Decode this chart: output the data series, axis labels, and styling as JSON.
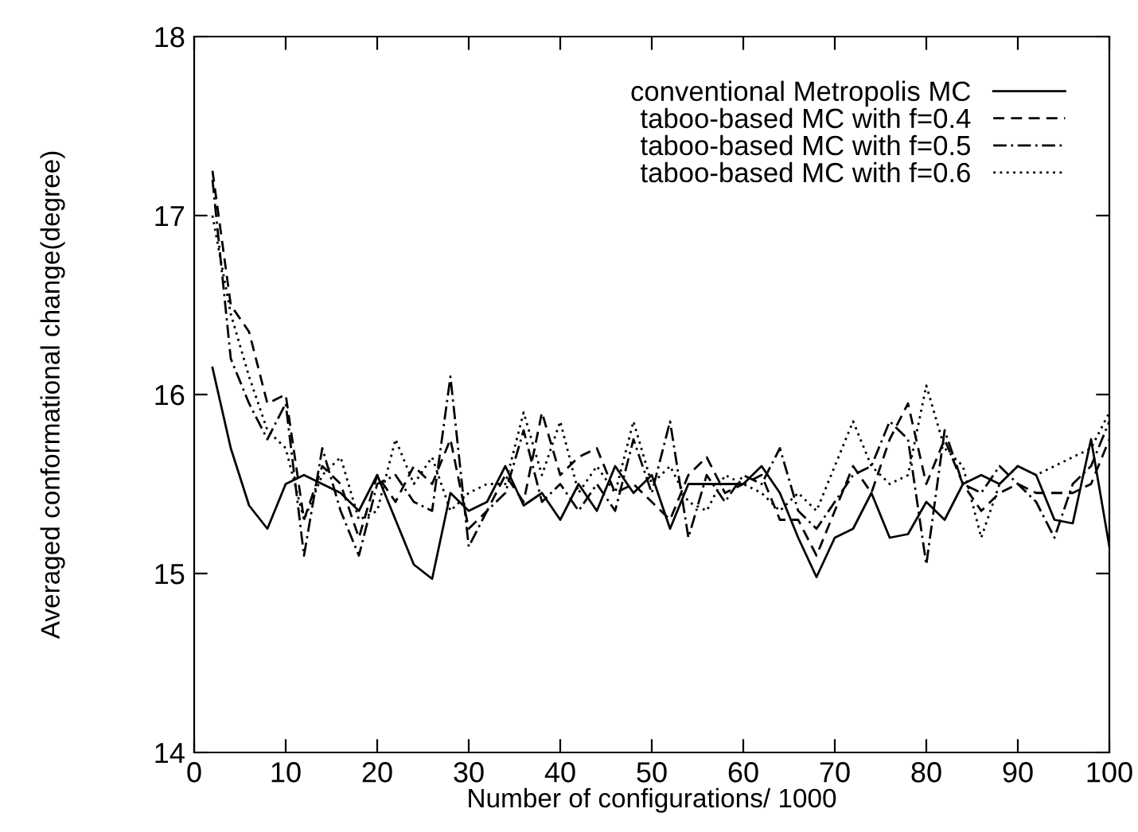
{
  "chart_data": {
    "type": "line",
    "xlabel": "Number of configurations/ 1000",
    "ylabel": "Averaged conformational change(degree)",
    "x": [
      2,
      4,
      6,
      8,
      10,
      12,
      14,
      16,
      18,
      20,
      22,
      24,
      26,
      28,
      30,
      32,
      34,
      36,
      38,
      40,
      42,
      44,
      46,
      48,
      50,
      52,
      54,
      56,
      58,
      60,
      62,
      64,
      66,
      68,
      70,
      72,
      74,
      76,
      78,
      80,
      82,
      84,
      86,
      88,
      90,
      92,
      94,
      96,
      98,
      100
    ],
    "xlim": [
      0,
      100
    ],
    "xticks": [
      0,
      10,
      20,
      30,
      40,
      50,
      60,
      70,
      80,
      90,
      100
    ],
    "ylim": [
      14,
      18
    ],
    "yticks": [
      14,
      15,
      16,
      17,
      18
    ],
    "grid": false,
    "legend": "top right",
    "marker": "none",
    "series": [
      {
        "name": "conventional Metropolis MC",
        "color": "#000000",
        "line_style": "solid",
        "values": [
          16.15,
          15.7,
          15.38,
          15.25,
          15.5,
          15.55,
          15.5,
          15.45,
          15.35,
          15.55,
          15.3,
          15.05,
          14.97,
          15.45,
          15.35,
          15.4,
          15.6,
          15.38,
          15.45,
          15.3,
          15.5,
          15.35,
          15.6,
          15.45,
          15.55,
          15.25,
          15.5,
          15.5,
          15.5,
          15.5,
          15.6,
          15.45,
          15.2,
          14.98,
          15.2,
          15.25,
          15.45,
          15.2,
          15.22,
          15.4,
          15.3,
          15.5,
          15.55,
          15.5,
          15.6,
          15.55,
          15.3,
          15.28,
          15.75,
          15.15
        ]
      },
      {
        "name": "taboo-based MC with f=0.4",
        "color": "#000000",
        "line_style": "dashed",
        "values": [
          17.25,
          16.5,
          16.35,
          15.95,
          16.0,
          15.3,
          15.6,
          15.5,
          15.2,
          15.55,
          15.4,
          15.6,
          15.5,
          15.75,
          15.25,
          15.35,
          15.55,
          15.4,
          15.9,
          15.55,
          15.65,
          15.7,
          15.45,
          15.5,
          15.4,
          15.3,
          15.55,
          15.65,
          15.45,
          15.5,
          15.55,
          15.3,
          15.3,
          15.1,
          15.35,
          15.6,
          15.45,
          15.75,
          15.95,
          15.5,
          15.75,
          15.5,
          15.35,
          15.45,
          15.5,
          15.45,
          15.45,
          15.45,
          15.5,
          15.75
        ]
      },
      {
        "name": "taboo-based MC with f=0.5",
        "color": "#000000",
        "line_style": "dashdot",
        "values": [
          17.2,
          16.2,
          15.95,
          15.75,
          15.95,
          15.1,
          15.7,
          15.35,
          15.1,
          15.5,
          15.55,
          15.4,
          15.35,
          16.1,
          15.15,
          15.35,
          15.45,
          15.8,
          15.4,
          15.5,
          15.35,
          15.5,
          15.35,
          15.75,
          15.45,
          15.85,
          15.2,
          15.55,
          15.4,
          15.55,
          15.5,
          15.7,
          15.35,
          15.25,
          15.4,
          15.55,
          15.6,
          15.85,
          15.75,
          15.05,
          15.8,
          15.5,
          15.45,
          15.6,
          15.5,
          15.4,
          15.2,
          15.5,
          15.6,
          15.85
        ]
      },
      {
        "name": "taboo-based MC with f=0.6",
        "color": "#000000",
        "line_style": "dotted",
        "values": [
          17.0,
          16.45,
          16.1,
          15.8,
          15.7,
          15.3,
          15.55,
          15.65,
          15.3,
          15.35,
          15.75,
          15.5,
          15.65,
          15.35,
          15.45,
          15.5,
          15.5,
          15.9,
          15.55,
          15.85,
          15.45,
          15.6,
          15.45,
          15.85,
          15.5,
          15.6,
          15.4,
          15.35,
          15.55,
          15.5,
          15.45,
          15.35,
          15.45,
          15.35,
          15.6,
          15.85,
          15.6,
          15.5,
          15.55,
          16.05,
          15.7,
          15.6,
          15.2,
          15.5,
          15.6,
          15.55,
          15.6,
          15.65,
          15.7,
          15.9
        ]
      }
    ]
  }
}
